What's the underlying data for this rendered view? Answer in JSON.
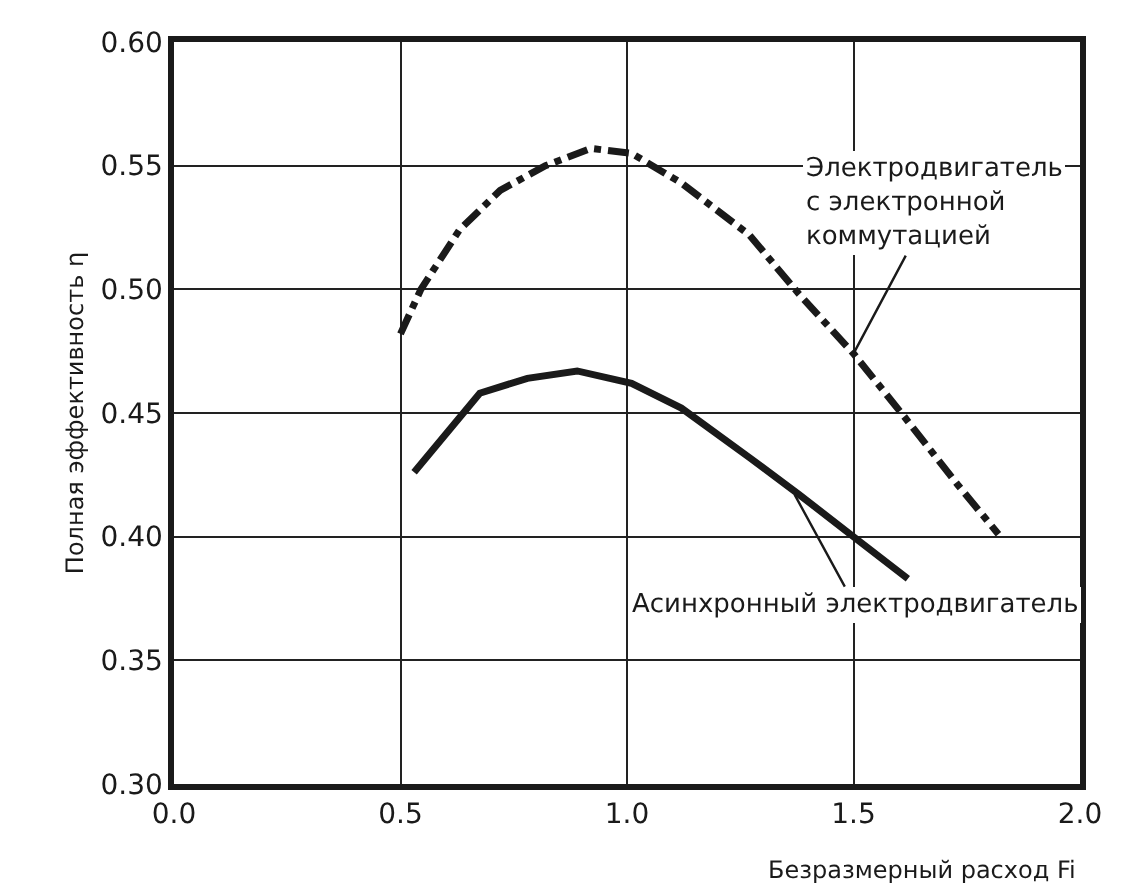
{
  "chart_data": {
    "type": "line",
    "xlabel": "Безразмерный расход Fi",
    "ylabel": "Полная эффективность η",
    "xlim": [
      0,
      2
    ],
    "xticks": [
      {
        "value": 0,
        "label": "0.0"
      },
      {
        "value": 0.5,
        "label": "0.5"
      },
      {
        "value": 1,
        "label": "1.0"
      },
      {
        "value": 1.5,
        "label": "1.5"
      },
      {
        "value": 2,
        "label": "2.0"
      }
    ],
    "ylim": [
      0.3,
      0.6
    ],
    "yticks": [
      {
        "value": 0.3,
        "label": "0.30"
      },
      {
        "value": 0.35,
        "label": "0.35"
      },
      {
        "value": 0.4,
        "label": "0.40"
      },
      {
        "value": 0.45,
        "label": "0.45"
      },
      {
        "value": 0.5,
        "label": "0.50"
      },
      {
        "value": 0.55,
        "label": "0.55"
      },
      {
        "value": 0.6,
        "label": "0.60"
      }
    ],
    "grid": true,
    "marker": "none",
    "series": [
      {
        "color": "#1a1a1a",
        "line_style": "dashdot",
        "x": [
          0.5,
          0.545,
          0.63,
          0.72,
          0.82,
          0.92,
          1.01,
          1.12,
          1.27,
          1.38,
          1.5,
          1.61,
          1.73,
          1.82
        ],
        "values": [
          0.482,
          0.5,
          0.524,
          0.54,
          0.55,
          0.557,
          0.555,
          0.543,
          0.522,
          0.498,
          0.474,
          0.449,
          0.421,
          0.401
        ]
      },
      {
        "color": "#1a1a1a",
        "line_style": "solid",
        "x": [
          0.53,
          0.675,
          0.78,
          0.89,
          1.01,
          1.12,
          1.27,
          1.38,
          1.5,
          1.62
        ],
        "values": [
          0.426,
          0.458,
          0.464,
          0.467,
          0.462,
          0.452,
          0.432,
          0.417,
          0.4,
          0.383
        ]
      }
    ],
    "annotations": [
      {
        "text": "Электродвигатель\nс электронной\nкоммутацией",
        "x": 1.5,
        "y": 0.474
      },
      {
        "text": "Асинхронный электродвигатель",
        "x": 1.37,
        "y": 0.417
      }
    ]
  }
}
